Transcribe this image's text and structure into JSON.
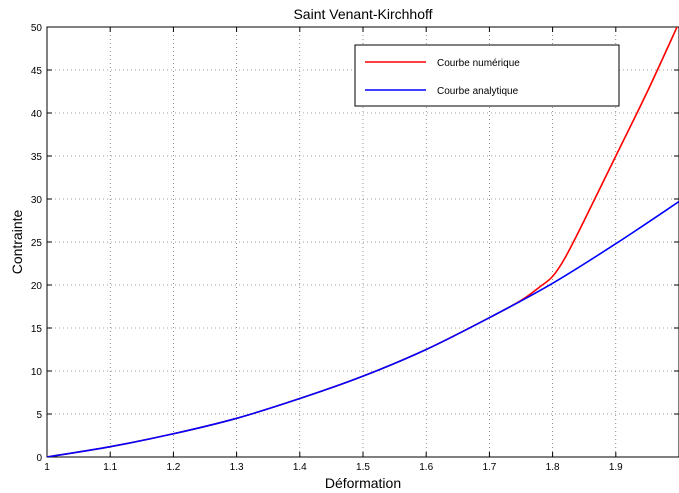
{
  "chart_data": {
    "type": "line",
    "title": "Saint Venant-Kirchhoff",
    "xlabel": "Déformation",
    "ylabel": "Contrainte",
    "xlim": [
      1,
      2
    ],
    "ylim": [
      0,
      50
    ],
    "xticks": [
      1,
      1.1,
      1.2,
      1.3,
      1.4,
      1.5,
      1.6,
      1.7,
      1.8,
      1.9
    ],
    "xtick_labels": [
      "1",
      "1.1",
      "1.2",
      "1.3",
      "1.4",
      "1.5",
      "1.6",
      "1.7",
      "1.8",
      "1.9"
    ],
    "yticks": [
      0,
      5,
      10,
      15,
      20,
      25,
      30,
      35,
      40,
      45,
      50
    ],
    "ytick_labels": [
      "0",
      "5",
      "10",
      "15",
      "20",
      "25",
      "30",
      "35",
      "40",
      "45",
      "50"
    ],
    "grid": true,
    "legend_position": "top-right",
    "series": [
      {
        "name": "Courbe numérique",
        "color": "#ff0000",
        "x": [
          1.0,
          1.1,
          1.2,
          1.3,
          1.4,
          1.5,
          1.6,
          1.7,
          1.75,
          1.78,
          1.8,
          1.82,
          1.85,
          1.9,
          1.95,
          2.0
        ],
        "y": [
          0,
          1.2,
          2.7,
          4.5,
          6.8,
          9.4,
          12.5,
          16.2,
          18.2,
          19.8,
          21.0,
          23.2,
          27.5,
          35.0,
          42.5,
          50.5
        ]
      },
      {
        "name": "Courbe analytique",
        "color": "#0000ff",
        "x": [
          1.0,
          1.1,
          1.2,
          1.3,
          1.4,
          1.5,
          1.6,
          1.7,
          1.8,
          1.9,
          2.0
        ],
        "y": [
          0,
          1.2,
          2.7,
          4.5,
          6.8,
          9.4,
          12.5,
          16.2,
          20.2,
          24.8,
          29.7
        ]
      }
    ]
  }
}
